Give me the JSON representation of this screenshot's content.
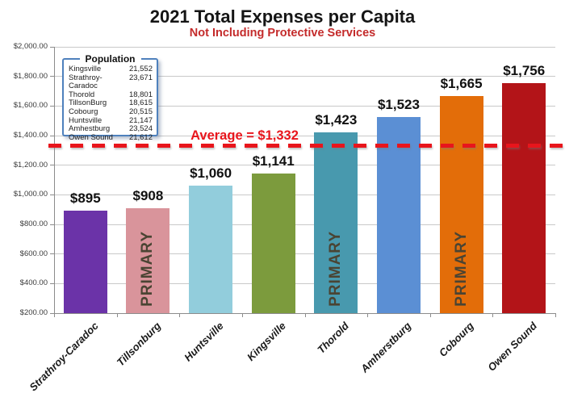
{
  "header": {
    "title": "2021 Total Expenses per Capita",
    "subtitle": "Not Including Protective Services"
  },
  "legend": {
    "title": "Population",
    "rows": [
      {
        "name": "Kingsville",
        "value": "21,552"
      },
      {
        "name": "Strathroy-Caradoc",
        "value": "23,671"
      },
      {
        "name": "Thorold",
        "value": "18,801"
      },
      {
        "name": "TillsonBurg",
        "value": "18,615"
      },
      {
        "name": "Cobourg",
        "value": "20,515"
      },
      {
        "name": "Huntsville",
        "value": "21,147"
      },
      {
        "name": "Amhestburg",
        "value": "23,524"
      },
      {
        "name": "Owen Sound",
        "value": "21,612"
      }
    ]
  },
  "chart_data": {
    "type": "bar",
    "title": "2021 Total Expenses per Capita",
    "subtitle": "Not Including Protective Services",
    "categories": [
      "Strathroy-Caradoc",
      "Tillsonburg",
      "Huntsville",
      "Kingsville",
      "Thorold",
      "Amherstburg",
      "Cobourg",
      "Owen Sound"
    ],
    "values": [
      895,
      908,
      1060,
      1141,
      1423,
      1523,
      1665,
      1756
    ],
    "value_labels": [
      "$895",
      "$908",
      "$1,060",
      "$1,141",
      "$1,423",
      "$1,523",
      "$1,665",
      "$1,756"
    ],
    "bar_colors": [
      "#6B33A8",
      "#D9949B",
      "#92CDDC",
      "#7C9B3D",
      "#4899AE",
      "#5B8FD4",
      "#E36D09",
      "#B31418"
    ],
    "primary_overlay_text": "PRIMARY",
    "primary_overlay_on": [
      false,
      true,
      false,
      false,
      true,
      false,
      true,
      false
    ],
    "average": 1332,
    "average_label": "Average = $1,332",
    "ylim": [
      200,
      2000
    ],
    "ytick_step": 200,
    "ytick_labels": [
      "$200.00",
      "$400.00",
      "$600.00",
      "$800.00",
      "$1,000.00",
      "$1,200.00",
      "$1,400.00",
      "$1,600.00",
      "$1,800.00",
      "$2,000.00"
    ],
    "grid": true,
    "legend_position": "upper-left",
    "colors": {
      "subtitle": "#C42B2B",
      "average": "#E8151C",
      "primary_text": "#4A4433",
      "grid": "#C9C9C9",
      "axis": "#8C8C8C",
      "legend_border": "#4F81BD",
      "label_text": "#111111"
    }
  }
}
